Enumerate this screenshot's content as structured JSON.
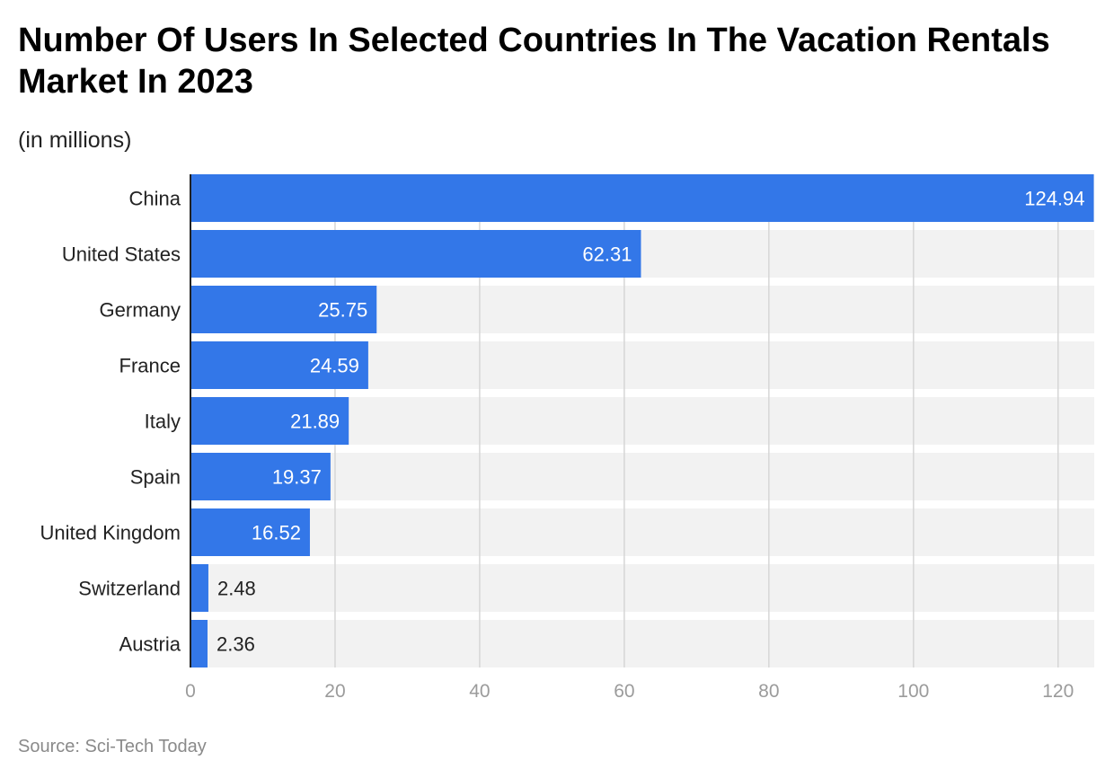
{
  "chart_data": {
    "type": "bar",
    "orientation": "horizontal",
    "title": "Number Of Users In Selected Countries In The Vacation Rentals Market In 2023",
    "subtitle": "(in millions)",
    "categories": [
      "China",
      "United States",
      "Germany",
      "France",
      "Italy",
      "Spain",
      "United Kingdom",
      "Switzerland",
      "Austria"
    ],
    "values": [
      124.94,
      62.31,
      25.75,
      24.59,
      21.89,
      19.37,
      16.52,
      2.48,
      2.36
    ],
    "value_labels": [
      "124.94",
      "62.31",
      "25.75",
      "24.59",
      "21.89",
      "19.37",
      "16.52",
      "2.48",
      "2.36"
    ],
    "xlim": [
      0,
      125
    ],
    "xticks": [
      0,
      20,
      40,
      60,
      80,
      100,
      120
    ],
    "xlabel": "",
    "ylabel": "",
    "grid": true,
    "source": "Source: Sci-Tech Today"
  },
  "colors": {
    "bar": "#3377e8",
    "track": "#f2f2f2",
    "grid": "#d6d6d6",
    "axis": "#222222",
    "tick": "#9b9b9b",
    "label_inside": "#ffffff",
    "label_outside": "#222222"
  }
}
